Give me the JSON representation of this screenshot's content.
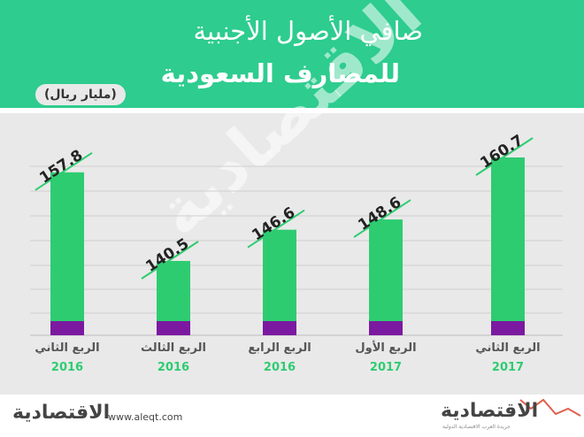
{
  "header": {
    "title_line1": "صافي الأصول الأجنبية",
    "title_line2": "للمصارف السعودية",
    "unit": "(مليار ريال)"
  },
  "footer": {
    "url": "www.aleqt.com",
    "logo_left": "الاقتصادية",
    "logo_right": "الاقتصادية",
    "logo_right_sub": "جريدة العرب الاقتصادية الدولية"
  },
  "watermark": "الاقتصادية",
  "colors": {
    "header_bg": "#2ecc8f",
    "bar_green": "#2ecc71",
    "bar_purple": "#7b1aa0",
    "plot_bg": "#e9e9e9",
    "label_line": "#2ecc71",
    "axis_label": "#555555",
    "year_label": "#2ecc71"
  },
  "chart_data": {
    "type": "bar",
    "categories": [
      {
        "quarter": "الربع الثاني",
        "year": "2016"
      },
      {
        "quarter": "الربع الثالث",
        "year": "2016"
      },
      {
        "quarter": "الربع الرابع",
        "year": "2016"
      },
      {
        "quarter": "الربع الأول",
        "year": "2017"
      },
      {
        "quarter": "الربع الثاني",
        "year": "2017"
      }
    ],
    "values": [
      157.8,
      140.5,
      146.6,
      148.6,
      160.7
    ],
    "value_labels": [
      "157.8",
      "140.5",
      "146.6",
      "148.6",
      "160.7"
    ],
    "title": "صافي الأصول الأجنبية للمصارف السعودية",
    "ylabel": "(مليار ريال)",
    "ylim": [
      120,
      165
    ],
    "grid": true,
    "legend": "none"
  }
}
